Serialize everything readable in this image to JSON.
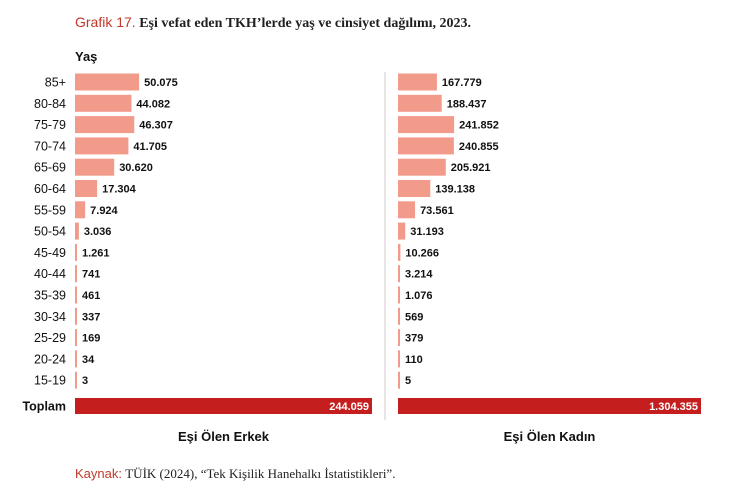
{
  "title": {
    "lead": "Grafik 17.",
    "main": "Eşi vefat eden TKH’lerde yaş ve cinsiyet dağılımı, 2023."
  },
  "source": {
    "lead": "Kaynak:",
    "main": "TÜİK (2024), “Tek Kişilik Hanehalkı İstatistikleri”."
  },
  "colors": {
    "bar": "#f29b8a",
    "total": "#c41e1e",
    "divider": "#d0c8c8",
    "text": "#111111"
  },
  "chart_data": {
    "type": "bar",
    "orientation": "horizontal",
    "ylabel": "Yaş",
    "categories": [
      "85+",
      "80-84",
      "75-79",
      "70-74",
      "65-69",
      "60-64",
      "55-59",
      "50-54",
      "45-49",
      "40-44",
      "35-39",
      "30-34",
      "25-29",
      "20-24",
      "15-19"
    ],
    "total_label": "Toplam",
    "series": [
      {
        "name": "Eşi Ölen Erkek",
        "values": [
          50075,
          44082,
          46307,
          41705,
          30620,
          17304,
          7924,
          3036,
          1261,
          741,
          461,
          337,
          169,
          34,
          3
        ],
        "value_labels": [
          "50.075",
          "44.082",
          "46.307",
          "41.705",
          "30.620",
          "17.304",
          "7.924",
          "3.036",
          "1.261",
          "741",
          "461",
          "337",
          "169",
          "34",
          "3"
        ],
        "total": 244059,
        "total_label": "244.059"
      },
      {
        "name": "Eşi Ölen Kadın",
        "values": [
          167779,
          188437,
          241852,
          240855,
          205921,
          139138,
          73561,
          31193,
          10266,
          3214,
          1076,
          569,
          379,
          110,
          5
        ],
        "value_labels": [
          "167.779",
          "188.437",
          "241.852",
          "240.855",
          "205.921",
          "139.138",
          "73.561",
          "31.193",
          "10.266",
          "3.214",
          "1.076",
          "569",
          "379",
          "110",
          "5"
        ],
        "total": 1304355,
        "total_label": "1.304.355"
      }
    ],
    "grid": false
  }
}
